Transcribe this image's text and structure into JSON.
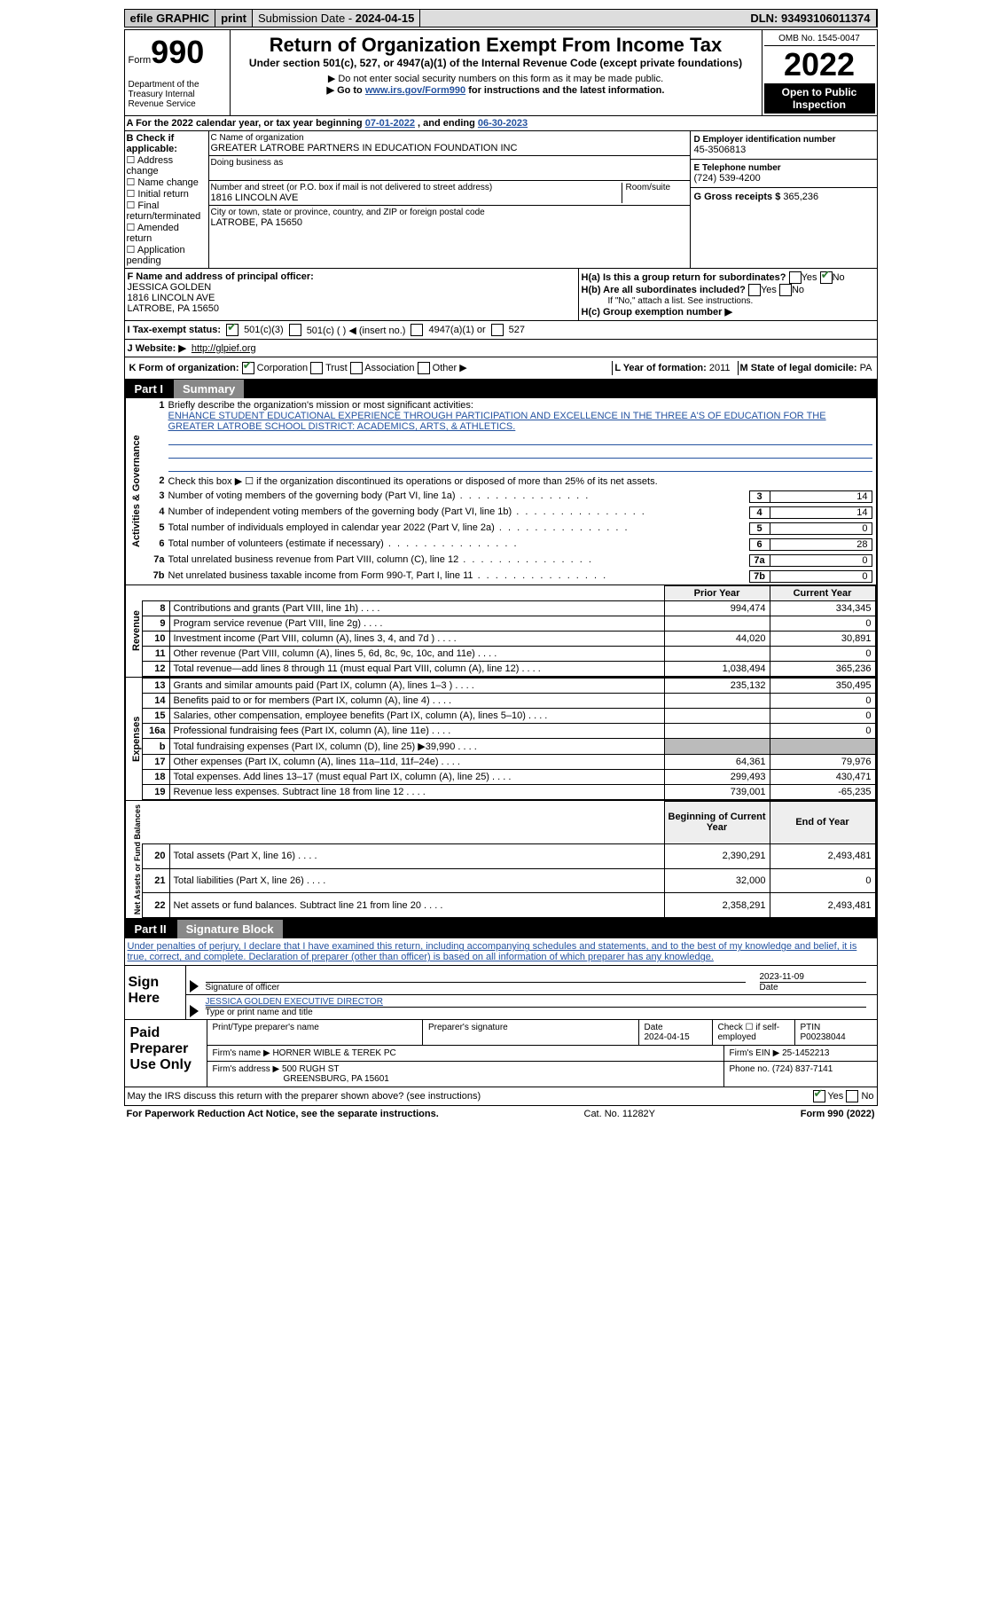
{
  "topbar": {
    "efile": "efile GRAPHIC",
    "print": "print",
    "subdate_lbl": "Submission Date - ",
    "subdate": "2024-04-15",
    "dln_lbl": "DLN: ",
    "dln": "93493106011374"
  },
  "header": {
    "form": "Form",
    "form_no": "990",
    "dept": "Department of the Treasury Internal Revenue Service",
    "title": "Return of Organization Exempt From Income Tax",
    "subtitle": "Under section 501(c), 527, or 4947(a)(1) of the Internal Revenue Code (except private foundations)",
    "note1": "▶ Do not enter social security numbers on this form as it may be made public.",
    "note2_pre": "▶ Go to ",
    "note2_link": "www.irs.gov/Form990",
    "note2_post": " for instructions and the latest information.",
    "omb": "OMB No. 1545-0047",
    "year": "2022",
    "open": "Open to Public Inspection"
  },
  "row_a": {
    "pre": "A  For the 2022 calendar year, or tax year beginning ",
    "begin": "07-01-2022",
    "mid": "   , and ending ",
    "end": "06-30-2023"
  },
  "b": {
    "hdr": "B Check if applicable:",
    "items": [
      "Address change",
      "Name change",
      "Initial return",
      "Final return/terminated",
      "Amended return",
      "Application pending"
    ]
  },
  "c": {
    "name_lbl": "C Name of organization",
    "name": "GREATER LATROBE PARTNERS IN EDUCATION FOUNDATION INC",
    "dba_lbl": "Doing business as",
    "street_lbl": "Number and street (or P.O. box if mail is not delivered to street address)",
    "room_lbl": "Room/suite",
    "street": "1816 LINCOLN AVE",
    "city_lbl": "City or town, state or province, country, and ZIP or foreign postal code",
    "city": "LATROBE, PA  15650"
  },
  "d": {
    "ein_lbl": "D Employer identification number",
    "ein": "45-3506813",
    "tel_lbl": "E Telephone number",
    "tel": "(724) 539-4200",
    "gross_lbl": "G Gross receipts $",
    "gross": "365,236"
  },
  "f": {
    "lbl": "F Name and address of principal officer:",
    "name": "JESSICA GOLDEN",
    "addr1": "1816 LINCOLN AVE",
    "addr2": "LATROBE, PA  15650"
  },
  "h": {
    "a_lbl": "H(a)  Is this a group return for subordinates?",
    "yes": "Yes",
    "no": "No",
    "b_lbl": "H(b)  Are all subordinates included?",
    "b_note": "If \"No,\" attach a list. See instructions.",
    "c_lbl": "H(c)  Group exemption number ▶"
  },
  "i": {
    "lbl": "I   Tax-exempt status:",
    "o1": "501(c)(3)",
    "o2": "501(c) (   ) ◀ (insert no.)",
    "o3": "4947(a)(1) or",
    "o4": "527"
  },
  "j": {
    "lbl": "J   Website: ▶",
    "url": "http://glpief.org"
  },
  "k": {
    "lbl": "K Form of organization:",
    "o1": "Corporation",
    "o2": "Trust",
    "o3": "Association",
    "o4": "Other ▶",
    "l_lbl": "L Year of formation:",
    "l_val": "2011",
    "m_lbl": "M State of legal domicile:",
    "m_val": "PA"
  },
  "part1": {
    "no": "Part I",
    "title": "Summary"
  },
  "summary": {
    "q1_lbl": "1",
    "q1_txt": "Briefly describe the organization's mission or most significant activities:",
    "mission": "ENHANCE STUDENT EDUCATIONAL EXPERIENCE THROUGH PARTICIPATION AND EXCELLENCE IN THE THREE A'S OF EDUCATION FOR THE GREATER LATROBE SCHOOL DISTRICT: ACADEMICS, ARTS, & ATHLETICS.",
    "q2_lbl": "2",
    "q2_txt": "Check this box ▶ ☐ if the organization discontinued its operations or disposed of more than 25% of its net assets.",
    "side_ag": "Activities & Governance",
    "side_rev": "Revenue",
    "side_exp": "Expenses",
    "side_na": "Net Assets or Fund Balances",
    "rows": [
      {
        "n": "3",
        "t": "Number of voting members of the governing body (Part VI, line 1a)",
        "box": "3",
        "v": "14"
      },
      {
        "n": "4",
        "t": "Number of independent voting members of the governing body (Part VI, line 1b)",
        "box": "4",
        "v": "14"
      },
      {
        "n": "5",
        "t": "Total number of individuals employed in calendar year 2022 (Part V, line 2a)",
        "box": "5",
        "v": "0"
      },
      {
        "n": "6",
        "t": "Total number of volunteers (estimate if necessary)",
        "box": "6",
        "v": "28"
      },
      {
        "n": "7a",
        "t": "Total unrelated business revenue from Part VIII, column (C), line 12",
        "box": "7a",
        "v": "0"
      },
      {
        "n": "7b",
        "t": "Net unrelated business taxable income from Form 990-T, Part I, line 11",
        "box": "7b",
        "v": "0"
      }
    ],
    "prior": "Prior Year",
    "current": "Current Year",
    "rev": [
      {
        "n": "8",
        "t": "Contributions and grants (Part VIII, line 1h)",
        "p": "994,474",
        "c": "334,345"
      },
      {
        "n": "9",
        "t": "Program service revenue (Part VIII, line 2g)",
        "p": "",
        "c": "0"
      },
      {
        "n": "10",
        "t": "Investment income (Part VIII, column (A), lines 3, 4, and 7d )",
        "p": "44,020",
        "c": "30,891"
      },
      {
        "n": "11",
        "t": "Other revenue (Part VIII, column (A), lines 5, 6d, 8c, 9c, 10c, and 11e)",
        "p": "",
        "c": "0"
      },
      {
        "n": "12",
        "t": "Total revenue—add lines 8 through 11 (must equal Part VIII, column (A), line 12)",
        "p": "1,038,494",
        "c": "365,236"
      }
    ],
    "exp": [
      {
        "n": "13",
        "t": "Grants and similar amounts paid (Part IX, column (A), lines 1–3 )",
        "p": "235,132",
        "c": "350,495"
      },
      {
        "n": "14",
        "t": "Benefits paid to or for members (Part IX, column (A), line 4)",
        "p": "",
        "c": "0"
      },
      {
        "n": "15",
        "t": "Salaries, other compensation, employee benefits (Part IX, column (A), lines 5–10)",
        "p": "",
        "c": "0"
      },
      {
        "n": "16a",
        "t": "Professional fundraising fees (Part IX, column (A), line 11e)",
        "p": "",
        "c": "0"
      },
      {
        "n": "b",
        "t": "Total fundraising expenses (Part IX, column (D), line 25) ▶39,990",
        "p": "",
        "c": "",
        "shade": true
      },
      {
        "n": "17",
        "t": "Other expenses (Part IX, column (A), lines 11a–11d, 11f–24e)",
        "p": "64,361",
        "c": "79,976"
      },
      {
        "n": "18",
        "t": "Total expenses. Add lines 13–17 (must equal Part IX, column (A), line 25)",
        "p": "299,493",
        "c": "430,471"
      },
      {
        "n": "19",
        "t": "Revenue less expenses. Subtract line 18 from line 12",
        "p": "739,001",
        "c": "-65,235"
      }
    ],
    "na_hdr1": "Beginning of Current Year",
    "na_hdr2": "End of Year",
    "na": [
      {
        "n": "20",
        "t": "Total assets (Part X, line 16)",
        "p": "2,390,291",
        "c": "2,493,481"
      },
      {
        "n": "21",
        "t": "Total liabilities (Part X, line 26)",
        "p": "32,000",
        "c": "0"
      },
      {
        "n": "22",
        "t": "Net assets or fund balances. Subtract line 21 from line 20",
        "p": "2,358,291",
        "c": "2,493,481"
      }
    ]
  },
  "part2": {
    "no": "Part II",
    "title": "Signature Block"
  },
  "sig": {
    "penalty": "Under penalties of perjury, I declare that I have examined this return, including accompanying schedules and statements, and to the best of my knowledge and belief, it is true, correct, and complete. Declaration of preparer (other than officer) is based on all information of which preparer has any knowledge.",
    "sign_here": "Sign Here",
    "sig_officer_lbl": "Signature of officer",
    "sig_date": "2023-11-09",
    "date_lbl": "Date",
    "name": "JESSICA GOLDEN  EXECUTIVE DIRECTOR",
    "name_lbl": "Type or print name and title"
  },
  "ppu": {
    "hdr": "Paid Preparer Use Only",
    "r1": {
      "c1_lbl": "Print/Type preparer's name",
      "c2_lbl": "Preparer's signature",
      "c3_lbl": "Date",
      "c3": "2024-04-15",
      "c4_lbl": "Check ☐ if self-employed",
      "c5_lbl": "PTIN",
      "c5": "P00238044"
    },
    "r2": {
      "c1_lbl": "Firm's name    ▶",
      "c1": "HORNER WIBLE & TEREK PC",
      "c2_lbl": "Firm's EIN ▶",
      "c2": "25-1452213"
    },
    "r3": {
      "c1_lbl": "Firm's address ▶",
      "c1": "500 RUGH ST",
      "c1b": "GREENSBURG, PA  15601",
      "c2_lbl": "Phone no.",
      "c2": "(724) 837-7141"
    }
  },
  "discuss": {
    "txt": "May the IRS discuss this return with the preparer shown above? (see instructions)",
    "yes": "Yes",
    "no": "No"
  },
  "footer": {
    "l": "For Paperwork Reduction Act Notice, see the separate instructions.",
    "c": "Cat. No. 11282Y",
    "r": "Form 990 (2022)"
  }
}
